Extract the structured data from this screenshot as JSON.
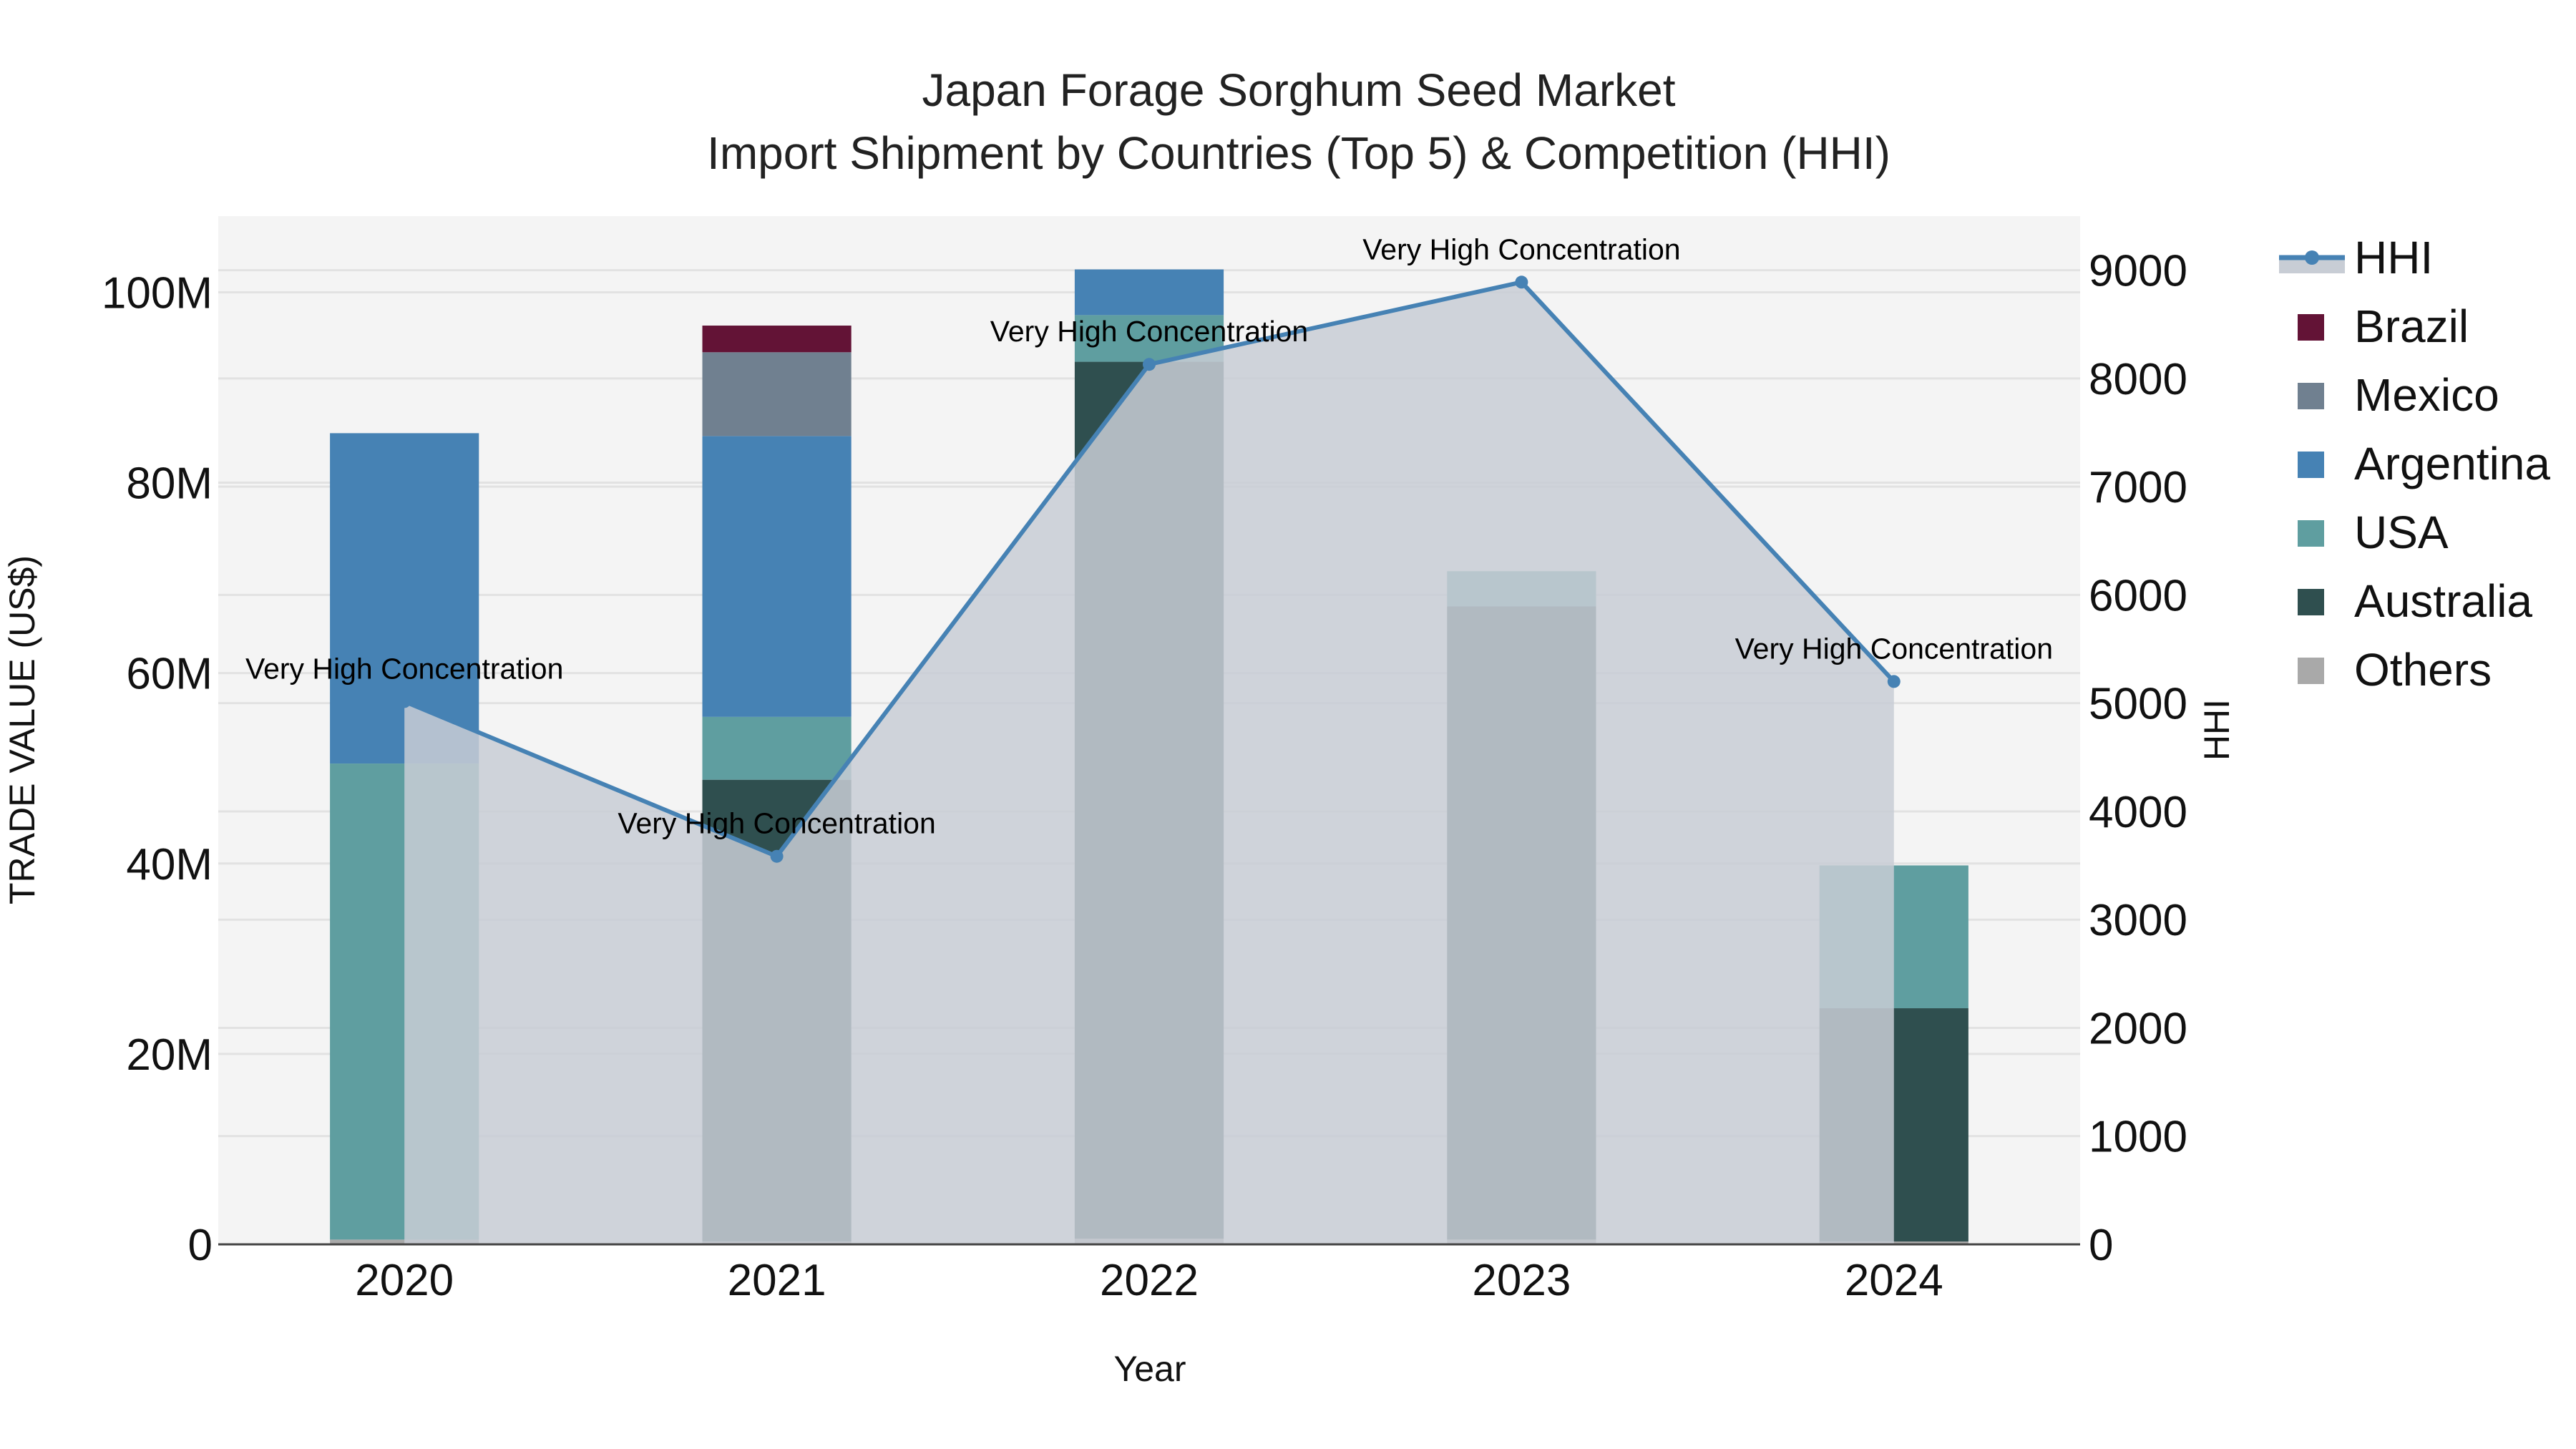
{
  "chart_data": {
    "type": "bar",
    "stacked": true,
    "title": "Japan Forage Sorghum Seed Market",
    "subtitle": "Import Shipment by Countries (Top 5) & Competition (HHI)",
    "xlabel": "Year",
    "ylabel": "TRADE VALUE (US$)",
    "y2label": "HHI",
    "categories": [
      "2020",
      "2021",
      "2022",
      "2023",
      "2024"
    ],
    "ylim": [
      0,
      108000000
    ],
    "y_ticks": [
      0,
      20000000,
      40000000,
      60000000,
      80000000,
      100000000
    ],
    "y_tick_labels": [
      "0",
      "20M",
      "40M",
      "60M",
      "80M",
      "100M"
    ],
    "y2lim": [
      0,
      9500
    ],
    "y2_ticks": [
      0,
      1000,
      2000,
      3000,
      4000,
      5000,
      6000,
      7000,
      8000,
      9000
    ],
    "y2_tick_labels": [
      "0",
      "1000",
      "2000",
      "3000",
      "4000",
      "5000",
      "6000",
      "7000",
      "8000",
      "9000"
    ],
    "grid": true,
    "legend_position": "right",
    "series": [
      {
        "name": "Others",
        "color": "#a9a9a9",
        "values": [
          500000,
          300000,
          600000,
          500000,
          300000
        ]
      },
      {
        "name": "Australia",
        "color": "#2f4f4f",
        "values": [
          0,
          48500000,
          92100000,
          66500000,
          24500000
        ]
      },
      {
        "name": "USA",
        "color": "#5f9ea0",
        "values": [
          50000000,
          6600000,
          4900000,
          3700000,
          15000000
        ]
      },
      {
        "name": "Argentina",
        "color": "#4682b4",
        "values": [
          34700000,
          29500000,
          4800000,
          0,
          0
        ]
      },
      {
        "name": "Mexico",
        "color": "#708090",
        "values": [
          0,
          8800000,
          0,
          0,
          0
        ]
      },
      {
        "name": "Brazil",
        "color": "#631336",
        "values": [
          0,
          2800000,
          0,
          0,
          0
        ]
      }
    ],
    "line_series": {
      "name": "HHI",
      "axis": "y2",
      "color": "#4682b4",
      "fill_color": "#c8cdd5",
      "values": [
        5015,
        3585,
        8130,
        8890,
        5200
      ]
    },
    "annotations": [
      {
        "x": "2020",
        "text": "Very High Concentration"
      },
      {
        "x": "2021",
        "text": "Very High Concentration"
      },
      {
        "x": "2022",
        "text": "Very High Concentration"
      },
      {
        "x": "2023",
        "text": "Very High Concentration"
      },
      {
        "x": "2024",
        "text": "Very High Concentration"
      }
    ],
    "legend": [
      "HHI",
      "Brazil",
      "Mexico",
      "Argentina",
      "USA",
      "Australia",
      "Others"
    ]
  }
}
